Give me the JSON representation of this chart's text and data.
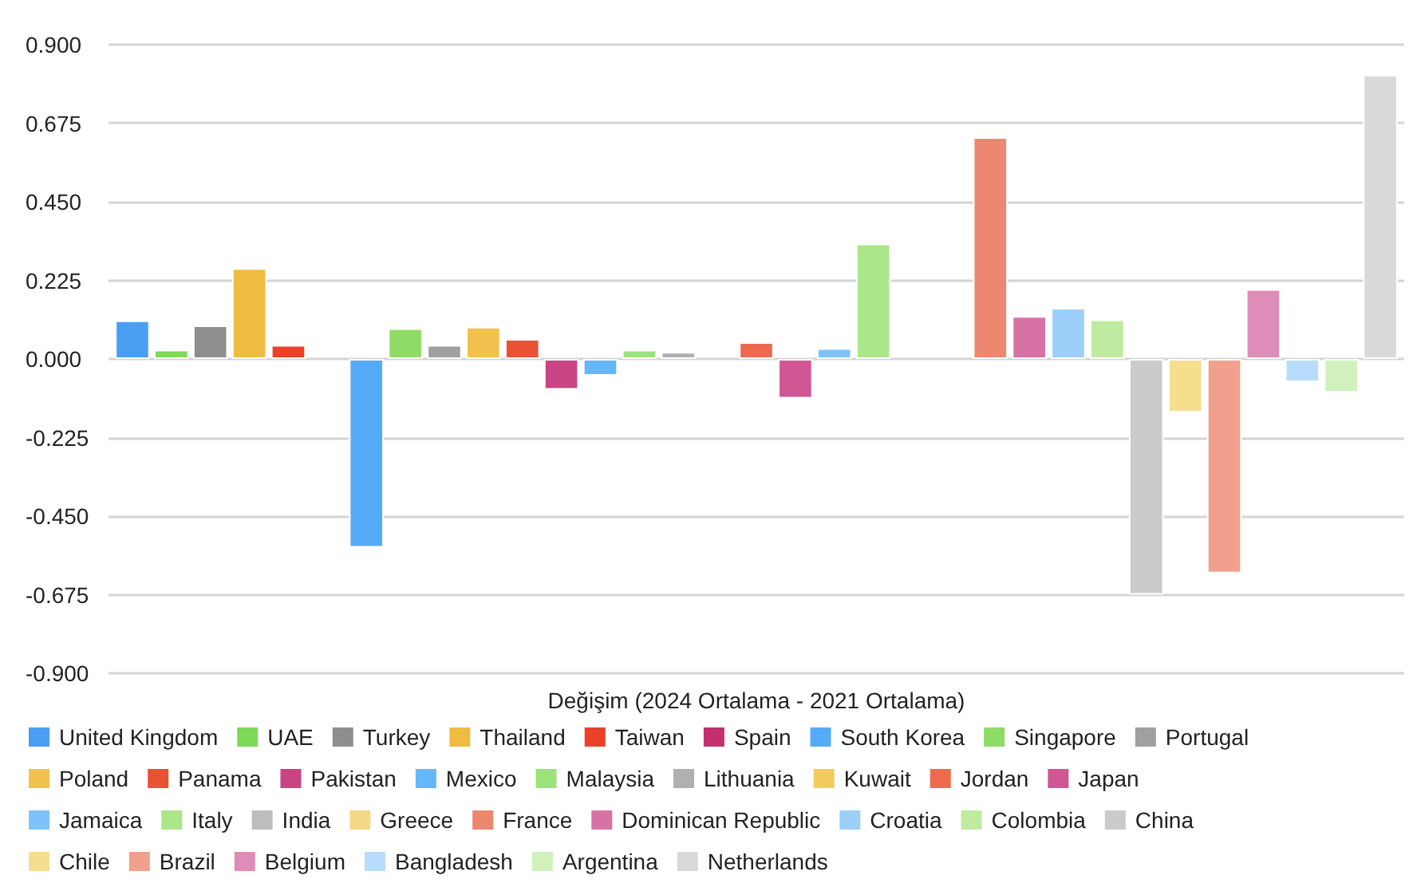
{
  "chart_data": {
    "type": "bar",
    "categories": [
      "Değişim (2024 Ortalama - 2021 Ortalama)"
    ],
    "ylim": [
      -0.9,
      0.9
    ],
    "yticks": [
      {
        "value": -0.9,
        "label": "-0.900"
      },
      {
        "value": -0.675,
        "label": "-0.675"
      },
      {
        "value": -0.45,
        "label": "-0.450"
      },
      {
        "value": -0.225,
        "label": "-0.225"
      },
      {
        "value": 0,
        "label": "0.000"
      },
      {
        "value": 0.225,
        "label": "0.225"
      },
      {
        "value": 0.45,
        "label": "0.450"
      },
      {
        "value": 0.675,
        "label": "0.675"
      },
      {
        "value": 0.9,
        "label": "0.900"
      }
    ],
    "grid": "y",
    "legend": "bottom",
    "series": [
      {
        "name": "United Kingdom",
        "color": "#4a9ff5",
        "values": [
          0.11
        ]
      },
      {
        "name": "UAE",
        "color": "#7ed957",
        "values": [
          0.026
        ]
      },
      {
        "name": "Turkey",
        "color": "#8e8e8e",
        "values": [
          0.096
        ]
      },
      {
        "name": "Thailand",
        "color": "#efbb40",
        "values": [
          0.26
        ]
      },
      {
        "name": "Taiwan",
        "color": "#ea4127",
        "values": [
          0.04
        ]
      },
      {
        "name": "Spain",
        "color": "#c4306e",
        "values": [
          null
        ]
      },
      {
        "name": "South Korea",
        "color": "#55abf8",
        "values": [
          -0.54
        ]
      },
      {
        "name": "Singapore",
        "color": "#8edc66",
        "values": [
          0.088
        ]
      },
      {
        "name": "Portugal",
        "color": "#a0a0a0",
        "values": [
          0.04
        ]
      },
      {
        "name": "Poland",
        "color": "#f0c24d",
        "values": [
          0.092
        ]
      },
      {
        "name": "Panama",
        "color": "#ea5234",
        "values": [
          0.057
        ]
      },
      {
        "name": "Pakistan",
        "color": "#c84483",
        "values": [
          -0.088
        ]
      },
      {
        "name": "Mexico",
        "color": "#66b7f8",
        "values": [
          -0.048
        ]
      },
      {
        "name": "Malaysia",
        "color": "#9ce27a",
        "values": [
          0.026
        ]
      },
      {
        "name": "Lithuania",
        "color": "#b0b0b0",
        "values": [
          0.02
        ]
      },
      {
        "name": "Kuwait",
        "color": "#f3ca5c",
        "values": [
          null
        ]
      },
      {
        "name": "Jordan",
        "color": "#ed6a4f",
        "values": [
          0.048
        ]
      },
      {
        "name": "Japan",
        "color": "#d05793",
        "values": [
          -0.113
        ]
      },
      {
        "name": "Jamaica",
        "color": "#7dc2f9",
        "values": [
          0.031
        ]
      },
      {
        "name": "Italy",
        "color": "#abe68a",
        "values": [
          0.33
        ]
      },
      {
        "name": "India",
        "color": "#bdbdbd",
        "values": [
          null
        ]
      },
      {
        "name": "Greece",
        "color": "#f6d987",
        "values": [
          null
        ]
      },
      {
        "name": "France",
        "color": "#ee8770",
        "values": [
          0.635
        ]
      },
      {
        "name": "Dominican Republic",
        "color": "#d772a4",
        "values": [
          0.123
        ]
      },
      {
        "name": "Croatia",
        "color": "#9ccff9",
        "values": [
          0.146
        ]
      },
      {
        "name": "Colombia",
        "color": "#bfeba0",
        "values": [
          0.113
        ]
      },
      {
        "name": "China",
        "color": "#cbcbcb",
        "values": [
          -0.675
        ]
      },
      {
        "name": "Chile",
        "color": "#f6de8f",
        "values": [
          -0.153
        ]
      },
      {
        "name": "Brazil",
        "color": "#f1a08e",
        "values": [
          -0.614
        ]
      },
      {
        "name": "Belgium",
        "color": "#df8db8",
        "values": [
          0.2
        ]
      },
      {
        "name": "Bangladesh",
        "color": "#b8dcfb",
        "values": [
          -0.066
        ]
      },
      {
        "name": "Argentina",
        "color": "#d0f1bc",
        "values": [
          -0.096
        ]
      },
      {
        "name": "Netherlands",
        "color": "#d9d9d9",
        "values": [
          0.814
        ]
      }
    ]
  }
}
